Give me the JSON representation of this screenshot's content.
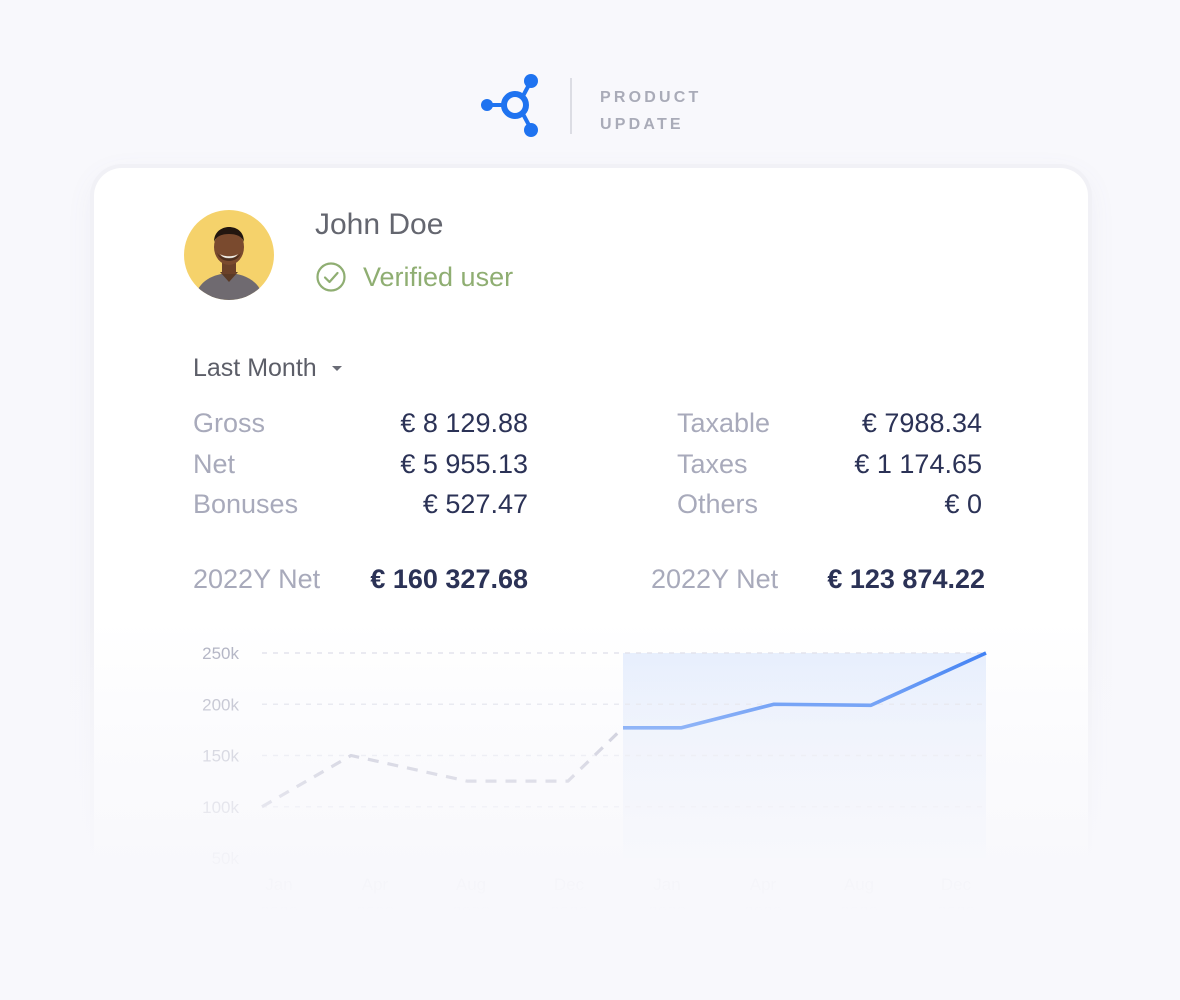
{
  "header": {
    "line1": "PRODUCT",
    "line2": "UPDATE",
    "logo_icon": "network-node-icon",
    "accent_color": "#1f73f0"
  },
  "user": {
    "name": "John Doe",
    "status": "Verified user",
    "status_icon": "check-circle-icon",
    "status_color": "#8fae72"
  },
  "period": {
    "selected": "Last Month",
    "icon": "caret-down-icon"
  },
  "stats": {
    "left": [
      {
        "label": "Gross",
        "value": "€ 8 129.88"
      },
      {
        "label": "Net",
        "value": "€ 5 955.13"
      },
      {
        "label": "Bonuses",
        "value": "€ 527.47"
      }
    ],
    "right": [
      {
        "label": "Taxable",
        "value": "€ 7988.34"
      },
      {
        "label": "Taxes",
        "value": "€ 1 174.65"
      },
      {
        "label": "Others",
        "value": "€ 0"
      }
    ]
  },
  "annual": [
    {
      "label": "2022Y Net",
      "value": "€ 160 327.68"
    },
    {
      "label": "2022Y Net",
      "value": "€ 123 874.22"
    }
  ],
  "chart_data": {
    "type": "line",
    "x": [
      "Jan 2022",
      "Apr 2022",
      "Aug 2022",
      "Dec 2022",
      "Jan 2023",
      "Apr 2023",
      "Aug 2023",
      "Dec 2023"
    ],
    "yticks": [
      "250k",
      "200k",
      "150k",
      "100k",
      "50k"
    ],
    "ylim": [
      50000,
      250000
    ],
    "grid": true,
    "series": [
      {
        "style": "dashed",
        "color": "#a5a6bd",
        "points": [
          {
            "x": "Jan 2022",
            "y": 100000
          },
          {
            "x": "Apr 2022",
            "y": 150000
          },
          {
            "x": "Aug 2022",
            "y": 125000
          },
          {
            "x": "Dec 2022",
            "y": 125000
          },
          {
            "x": "Dec 2022 / Jan 2023",
            "y": 177000
          }
        ]
      },
      {
        "style": "solid",
        "color": "#1f6bf2",
        "highlighted_period": "2023",
        "points": [
          {
            "x": "Dec 2022 / Jan 2023",
            "y": 177000
          },
          {
            "x": "Jan 2023",
            "y": 177000
          },
          {
            "x": "Apr 2023",
            "y": 200000
          },
          {
            "x": "Aug 2023",
            "y": 199000
          },
          {
            "x": "Dec 2023",
            "y": 250000
          }
        ]
      }
    ]
  }
}
